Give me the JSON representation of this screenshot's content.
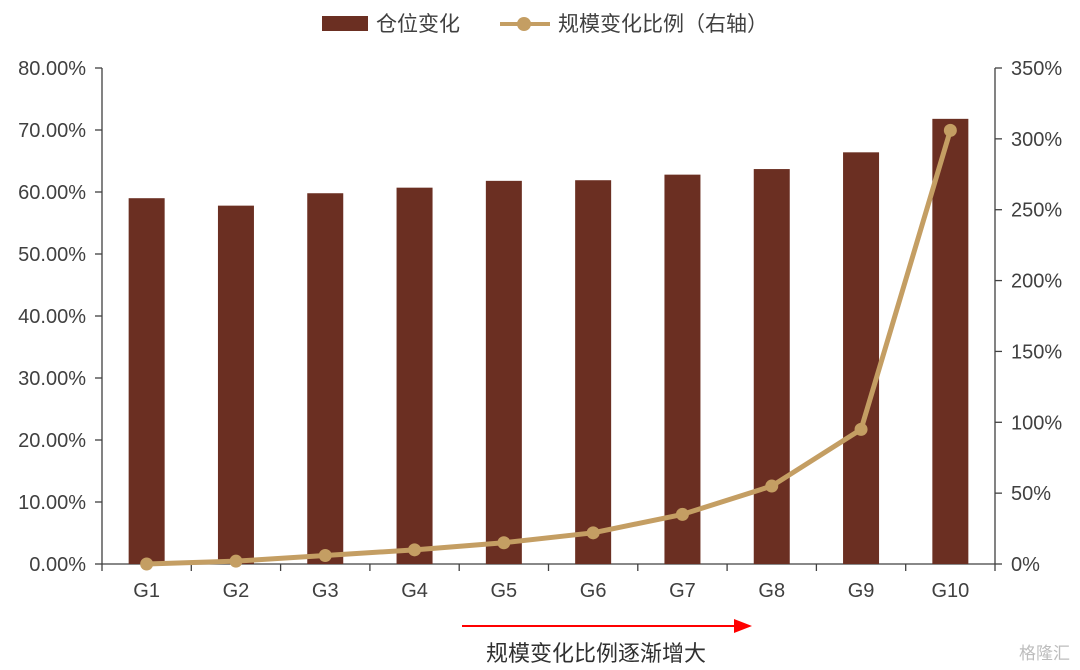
{
  "legend": {
    "bar_label": "仓位变化",
    "line_label": "规模变化比例（右轴）"
  },
  "annotation": {
    "text": "规模变化比例逐渐增大",
    "arrow_color": "#ff0000"
  },
  "watermark": "格隆汇",
  "colors": {
    "bar": "#6b2f22",
    "line": "#c49e63",
    "axis": "#404040",
    "text": "#404040"
  },
  "chart_data": {
    "type": "bar",
    "categories": [
      "G1",
      "G2",
      "G3",
      "G4",
      "G5",
      "G6",
      "G7",
      "G8",
      "G9",
      "G10"
    ],
    "series": [
      {
        "name": "仓位变化",
        "type": "bar",
        "axis": "left",
        "values": [
          59.0,
          57.8,
          59.8,
          60.7,
          61.8,
          61.9,
          62.8,
          63.7,
          66.4,
          71.8
        ]
      },
      {
        "name": "规模变化比例（右轴）",
        "type": "line",
        "axis": "right",
        "values": [
          0,
          2,
          6,
          10,
          15,
          22,
          35,
          55,
          95,
          306
        ]
      }
    ],
    "y_left": {
      "range": [
        0,
        80
      ],
      "ticks": [
        "0.00%",
        "10.00%",
        "20.00%",
        "30.00%",
        "40.00%",
        "50.00%",
        "60.00%",
        "70.00%",
        "80.00%"
      ]
    },
    "y_right": {
      "range": [
        0,
        350
      ],
      "ticks": [
        "0%",
        "50%",
        "100%",
        "150%",
        "200%",
        "250%",
        "300%",
        "350%"
      ]
    },
    "grid": false,
    "legend_position": "top"
  }
}
